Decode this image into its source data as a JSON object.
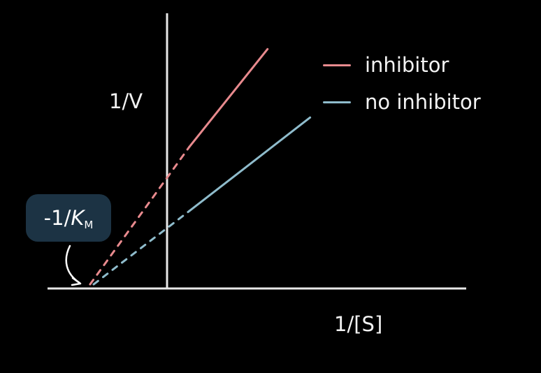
{
  "colors": {
    "background": "#000000",
    "axis": "#e8e8e8",
    "inhibitor": "#e88a8e",
    "no_inhibitor": "#8fbccc",
    "annotation_box": "#1c3344",
    "text": "#f2f2f2"
  },
  "chart_data": {
    "type": "line",
    "title": "",
    "xlabel": "1/[S]",
    "ylabel": "1/V",
    "xlim": [
      -1.7,
      4.2
    ],
    "ylim": [
      0,
      3.3
    ],
    "grid": false,
    "legend_position": "top-right",
    "series": [
      {
        "name": "inhibitor",
        "color": "#e88a8e",
        "solid": {
          "x": [
            0.3,
            1.4
          ],
          "y": [
            1.7,
            2.87
          ]
        },
        "extrapolated": {
          "x": [
            -1.1,
            0.3
          ],
          "y": [
            0.05,
            1.7
          ]
        }
      },
      {
        "name": "no inhibitor",
        "color": "#8fbccc",
        "solid": {
          "x": [
            0.3,
            2.0
          ],
          "y": [
            0.93,
            2.05
          ]
        },
        "extrapolated": {
          "x": [
            -1.05,
            0.3
          ],
          "y": [
            0.05,
            0.93
          ]
        }
      }
    ],
    "annotations": [
      {
        "label_prefix": "-1/",
        "label_var": "K",
        "label_sub": "M",
        "points_to_x": -1.1
      }
    ]
  }
}
